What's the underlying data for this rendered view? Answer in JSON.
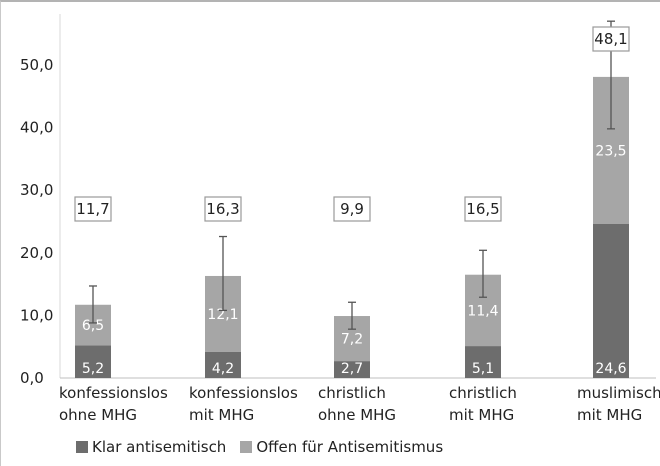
{
  "chart_data": {
    "type": "bar",
    "stacked": true,
    "title": "",
    "xlabel": "",
    "ylabel": "",
    "ylim": [
      0,
      55
    ],
    "yticks": [
      "0,0",
      "10,0",
      "20,0",
      "30,0",
      "40,0",
      "50,0"
    ],
    "ytick_values": [
      0,
      10,
      20,
      30,
      40,
      50
    ],
    "grid": false,
    "legend_position": "bottom",
    "categories": [
      [
        "konfessionslos",
        "ohne MHG"
      ],
      [
        "konfessionslos",
        "mit MHG"
      ],
      [
        "christlich",
        "ohne MHG"
      ],
      [
        "christlich",
        "mit MHG"
      ],
      [
        "muslimisch",
        "mit MHG"
      ]
    ],
    "series": [
      {
        "name": "Klar antisemitisch",
        "color": "#6d6d6d",
        "values": [
          5.2,
          4.2,
          2.7,
          5.1,
          24.6
        ],
        "labels": [
          "5,2",
          "4,2",
          "2,7",
          "5,1",
          "24,6"
        ]
      },
      {
        "name": "Offen für Antisemitismus",
        "color": "#a6a6a6",
        "values": [
          6.5,
          12.1,
          7.2,
          11.4,
          23.5
        ],
        "labels": [
          "6,5",
          "12,1",
          "7,2",
          "11,4",
          "23,5"
        ]
      }
    ],
    "totals": [
      11.7,
      16.3,
      9.9,
      16.5,
      48.1
    ],
    "total_labels": [
      "11,7",
      "16,3",
      "9,9",
      "16,5",
      "48,1"
    ],
    "error_bars": [
      [
        8.8,
        14.7
      ],
      [
        10.8,
        22.6
      ],
      [
        7.8,
        12.1
      ],
      [
        12.9,
        20.4
      ],
      [
        39.8,
        57
      ]
    ]
  }
}
